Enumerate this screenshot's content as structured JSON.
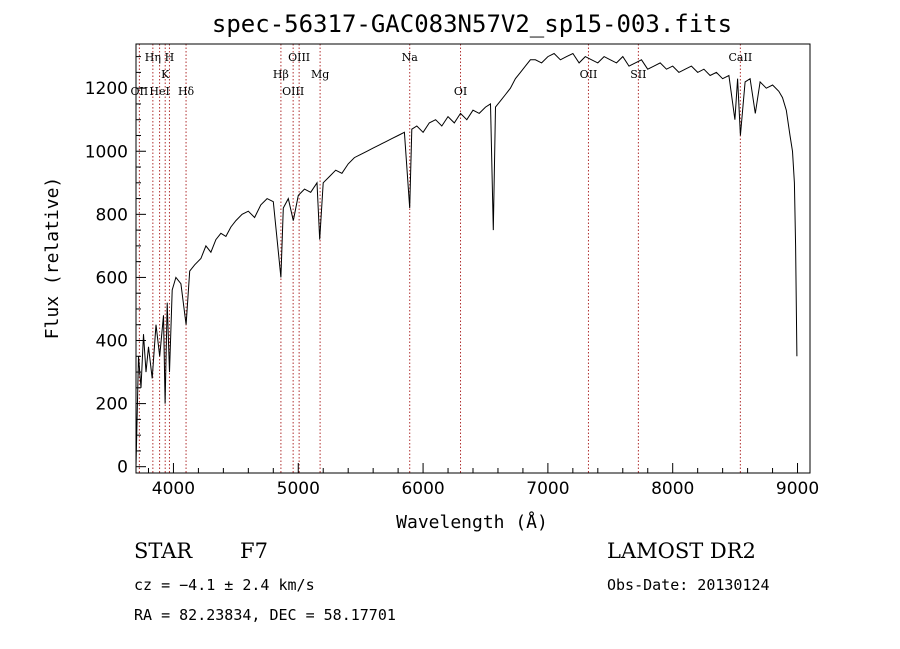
{
  "chart_data": {
    "type": "line",
    "title": "spec-56317-GAC083N57V2_sp15-003.fits",
    "xlabel": "Wavelength (Å)",
    "ylabel": "Flux (relative)",
    "xlim": [
      3700,
      9100
    ],
    "ylim": [
      -20,
      1340
    ],
    "xticks": [
      4000,
      5000,
      6000,
      7000,
      8000,
      9000
    ],
    "yticks": [
      0,
      200,
      400,
      600,
      800,
      1000,
      1200
    ],
    "grid": false,
    "series": [
      {
        "x": [
          3700,
          3720,
          3740,
          3760,
          3780,
          3800,
          3830,
          3860,
          3890,
          3920,
          3933,
          3950,
          3968,
          3990,
          4020,
          4060,
          4101,
          4130,
          4170,
          4220,
          4260,
          4300,
          4340,
          4380,
          4420,
          4460,
          4500,
          4550,
          4600,
          4650,
          4700,
          4750,
          4800,
          4861,
          4880,
          4920,
          4960,
          5000,
          5050,
          5100,
          5150,
          5172,
          5200,
          5250,
          5300,
          5350,
          5400,
          5450,
          5500,
          5550,
          5600,
          5650,
          5700,
          5750,
          5800,
          5850,
          5893,
          5910,
          5950,
          6000,
          6050,
          6100,
          6150,
          6200,
          6250,
          6300,
          6350,
          6400,
          6450,
          6500,
          6540,
          6563,
          6580,
          6620,
          6660,
          6700,
          6740,
          6780,
          6820,
          6860,
          6900,
          6950,
          7000,
          7050,
          7100,
          7150,
          7200,
          7250,
          7300,
          7350,
          7400,
          7450,
          7500,
          7550,
          7600,
          7650,
          7700,
          7750,
          7800,
          7850,
          7900,
          7950,
          8000,
          8050,
          8100,
          8150,
          8200,
          8250,
          8300,
          8350,
          8400,
          8450,
          8498,
          8520,
          8542,
          8580,
          8620,
          8662,
          8700,
          8750,
          8800,
          8850,
          8880,
          8910,
          8940,
          8960,
          8975,
          8985,
          8995
        ],
        "y": [
          0,
          350,
          250,
          420,
          300,
          380,
          280,
          450,
          350,
          480,
          200,
          520,
          300,
          560,
          600,
          580,
          450,
          620,
          640,
          660,
          700,
          680,
          720,
          740,
          730,
          760,
          780,
          800,
          810,
          790,
          830,
          850,
          840,
          600,
          820,
          850,
          780,
          860,
          880,
          870,
          900,
          720,
          900,
          920,
          940,
          930,
          960,
          980,
          990,
          1000,
          1010,
          1020,
          1030,
          1040,
          1050,
          1060,
          820,
          1070,
          1080,
          1060,
          1090,
          1100,
          1080,
          1110,
          1090,
          1120,
          1100,
          1130,
          1120,
          1140,
          1150,
          750,
          1140,
          1160,
          1180,
          1200,
          1230,
          1250,
          1270,
          1290,
          1290,
          1280,
          1300,
          1310,
          1290,
          1300,
          1310,
          1280,
          1300,
          1290,
          1280,
          1300,
          1290,
          1280,
          1300,
          1270,
          1280,
          1290,
          1260,
          1270,
          1280,
          1260,
          1270,
          1250,
          1260,
          1270,
          1250,
          1260,
          1240,
          1250,
          1230,
          1240,
          1100,
          1230,
          1050,
          1220,
          1230,
          1120,
          1220,
          1200,
          1210,
          1190,
          1170,
          1130,
          1050,
          1000,
          900,
          700,
          350
        ]
      }
    ],
    "spectral_lines": [
      {
        "label": "OII",
        "x": 3727,
        "row": 3
      },
      {
        "label": "Hη",
        "x": 3835,
        "row": 1
      },
      {
        "label": "HeI",
        "x": 3889,
        "row": 3
      },
      {
        "label": "K",
        "x": 3934,
        "row": 2
      },
      {
        "label": "H",
        "x": 3968,
        "row": 1
      },
      {
        "label": "Hδ",
        "x": 4101,
        "row": 3
      },
      {
        "label": "Hβ",
        "x": 4861,
        "row": 2
      },
      {
        "label": "OIII",
        "x": 4959,
        "row": 3
      },
      {
        "label": "OIII",
        "x": 5007,
        "row": 1
      },
      {
        "label": "Mg",
        "x": 5175,
        "row": 2
      },
      {
        "label": "Na",
        "x": 5893,
        "row": 1
      },
      {
        "label": "OI",
        "x": 6300,
        "row": 3
      },
      {
        "label": "OII",
        "x": 7325,
        "row": 2
      },
      {
        "label": "SII",
        "x": 7725,
        "row": 2
      },
      {
        "label": "CaII",
        "x": 8542,
        "row": 1
      }
    ]
  },
  "info": {
    "class": "STAR",
    "subclass": "F7",
    "survey": "LAMOST DR2",
    "cz": "cz = −4.1 ± 2.4 km/s",
    "obs_date": "Obs-Date: 20130124",
    "coords": "RA =  82.23834, DEC =  58.17701"
  },
  "colors": {
    "spectrum": "#000000",
    "line_marker": "#b03030"
  }
}
